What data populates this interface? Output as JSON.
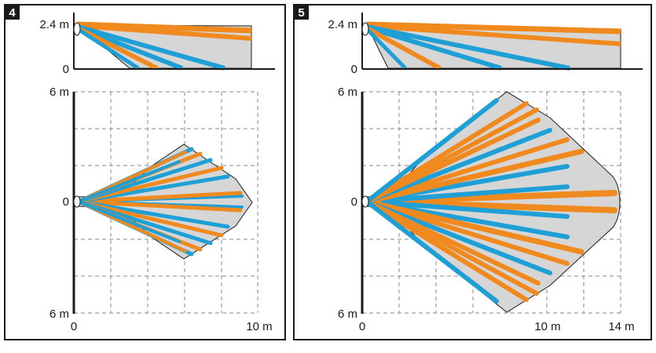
{
  "colors": {
    "orange": "#f08a1f",
    "blue": "#1ea0d6",
    "coverage_fill": "#d6d6d6",
    "grid": "#8a8a8a",
    "axis": "#1a1a1a",
    "badge_bg": "#1a1a1a"
  },
  "panels": [
    {
      "badge": "4",
      "side_view": {
        "height_label": "2.4 m",
        "zero_label": "0"
      },
      "top_view": {
        "top_label": "6 m",
        "center_label": "0",
        "bottom_label": "6 m",
        "x_zero_label": "0",
        "x_labels": [
          "10 m"
        ]
      }
    },
    {
      "badge": "5",
      "side_view": {
        "height_label": "2.4 m",
        "zero_label": "0"
      },
      "top_view": {
        "top_label": "6 m",
        "center_label": "0",
        "bottom_label": "6 m",
        "x_zero_label": "0",
        "x_labels": [
          "10 m",
          "14 m"
        ]
      }
    }
  ]
}
